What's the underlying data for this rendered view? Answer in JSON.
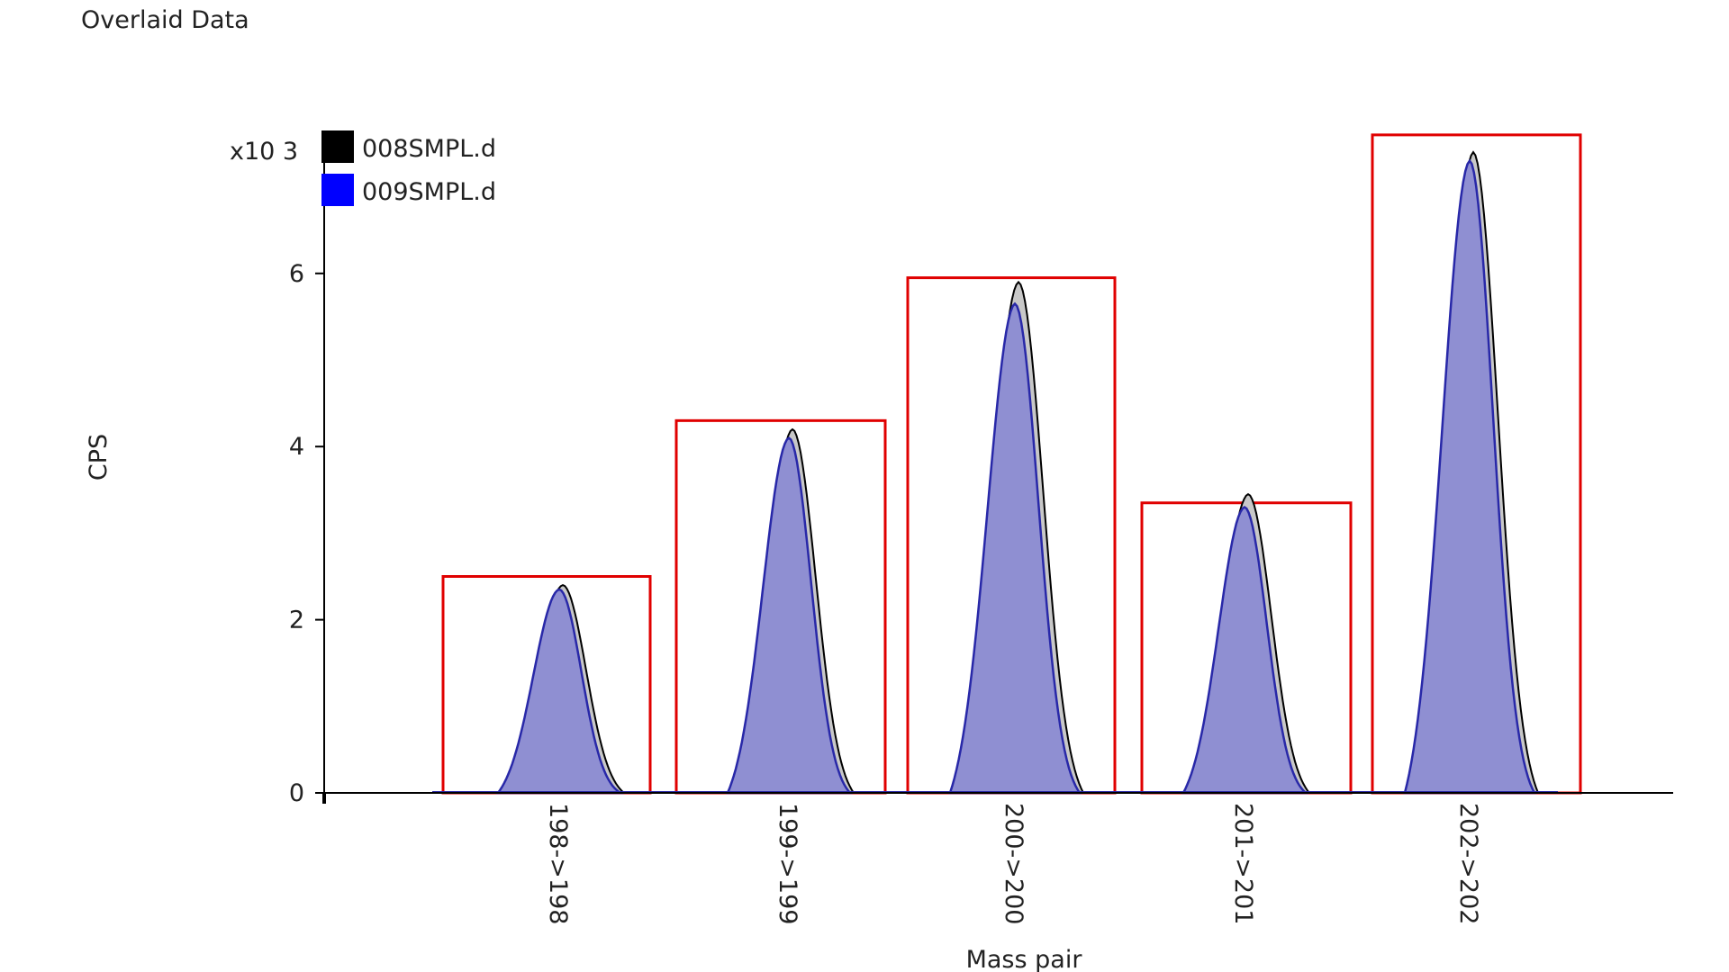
{
  "header": {
    "title": "Overlaid Data"
  },
  "colors": {
    "series_008": "#000000",
    "series_009": "#0000ff",
    "fill_008": "#c8c8c8",
    "fill_009": "#8f8fd2",
    "box": "#e00000",
    "axis": "#000000"
  },
  "chart_data": {
    "type": "area",
    "title": "Overlaid Data",
    "xlabel": "Mass pair",
    "ylabel": "CPS",
    "y_multiplier": "x10 3",
    "ylim": [
      0,
      7.4
    ],
    "yticks": [
      0,
      2,
      4,
      6
    ],
    "ytick_labels": [
      "0",
      "2",
      "4",
      "6"
    ],
    "grid": false,
    "legend_position": "top-left",
    "categories": [
      "198->198",
      "199->199",
      "200->200",
      "201->201",
      "202->202"
    ],
    "series": [
      {
        "name": "008SMPL.d",
        "values": [
          2.4,
          4.2,
          5.9,
          3.45,
          7.4
        ]
      },
      {
        "name": "009SMPL.d",
        "values": [
          2.35,
          4.1,
          5.65,
          3.3,
          7.3
        ]
      }
    ],
    "window_heights": [
      2.5,
      4.3,
      5.95,
      3.35,
      7.6
    ]
  }
}
